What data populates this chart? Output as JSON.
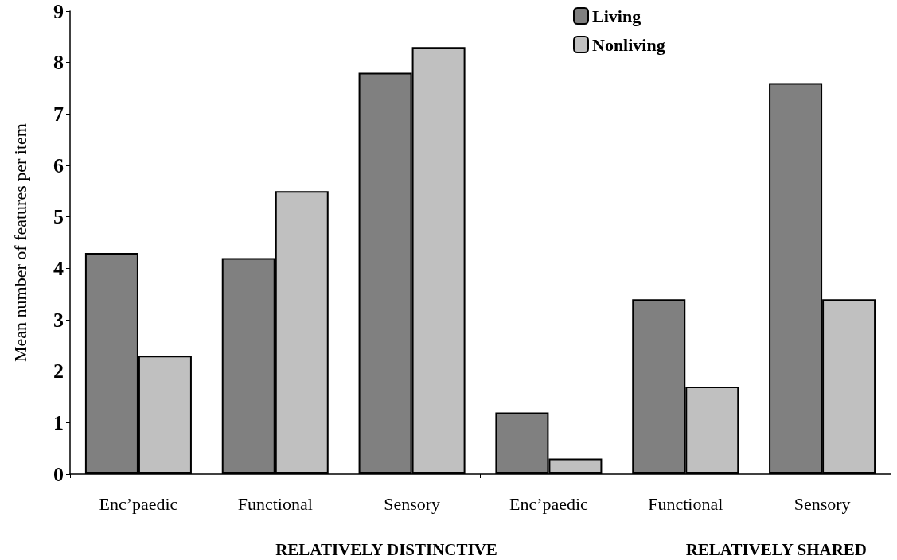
{
  "chart_data": {
    "type": "bar",
    "ylabel": "Mean number of features per item",
    "categories": [
      "Enc’paedic",
      "Functional",
      "Sensory",
      "Enc’paedic",
      "Functional",
      "Sensory"
    ],
    "series": [
      {
        "name": "Living",
        "color": "#808080",
        "values": [
          4.3,
          4.2,
          7.8,
          1.2,
          3.4,
          7.6
        ]
      },
      {
        "name": "Nonliving",
        "color": "#c0c0c0",
        "values": [
          2.3,
          5.5,
          8.3,
          0.3,
          1.7,
          3.4
        ]
      }
    ],
    "ylim": [
      0,
      9
    ],
    "yticks": [
      0,
      1,
      2,
      3,
      4,
      5,
      6,
      7,
      8,
      9
    ],
    "legend": "top",
    "annotations": [
      "RELATIVELY DISTINCTIVE",
      "RELATIVELY SHARED"
    ]
  }
}
